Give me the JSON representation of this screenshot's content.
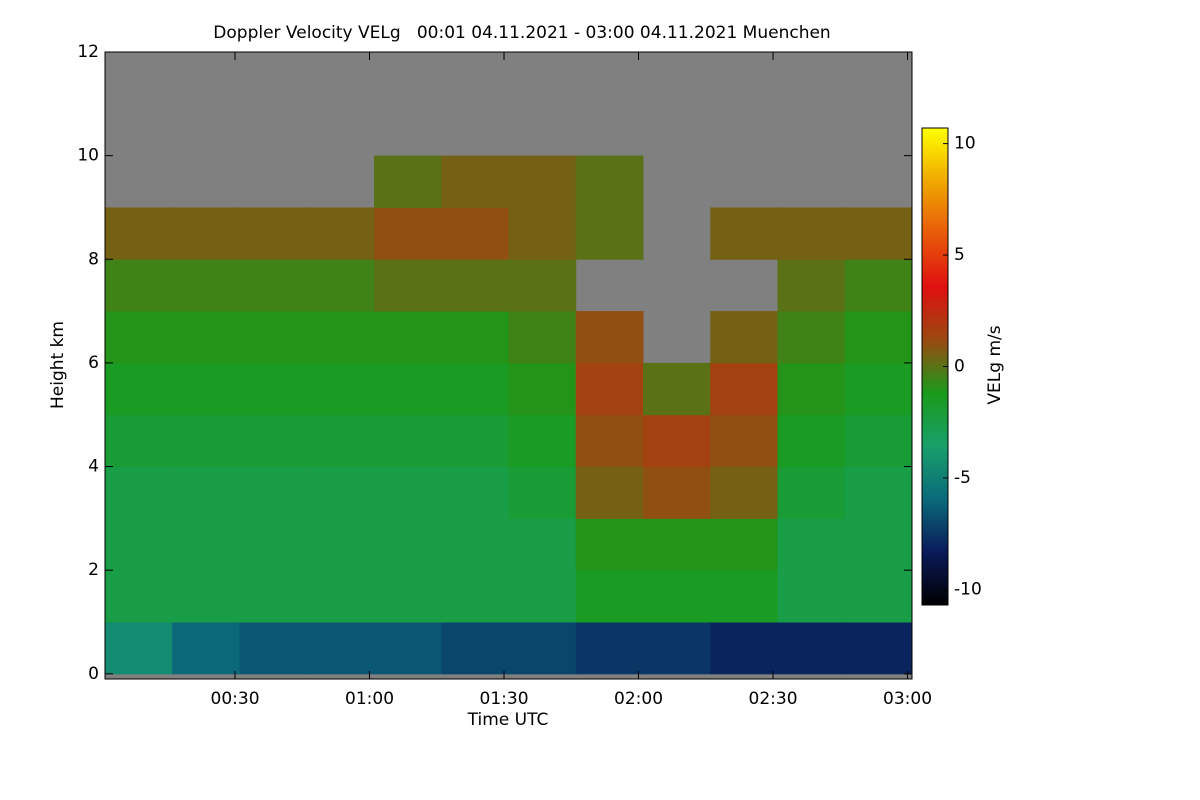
{
  "chart_data": {
    "type": "heatmap",
    "title": "Doppler Velocity VELg   00:01 04.11.2021 - 03:00 04.11.2021 Muenchen",
    "x_label": "Time UTC",
    "y_label": "Height km",
    "colorbar_label": "VELg m/s",
    "xbins": [
      1,
      16,
      31,
      46,
      61,
      76,
      91,
      106,
      121,
      136,
      151,
      166,
      181
    ],
    "ybins": [
      0,
      1,
      2,
      3,
      4,
      5,
      6,
      7,
      8,
      9,
      10,
      11,
      12
    ],
    "values": [
      [
        -4.5,
        -6,
        -6.5,
        -6.5,
        -6.5,
        -7,
        -7,
        -7.5,
        -7.5,
        -8,
        -8,
        -8
      ],
      [
        -2.5,
        -2.5,
        -2.5,
        -2.5,
        -2.5,
        -2.5,
        -2.5,
        -1.5,
        -1.5,
        -1.5,
        -2.5,
        -2.5
      ],
      [
        -2.5,
        -2.5,
        -2.5,
        -2.5,
        -2.5,
        -2.5,
        -2.5,
        -1,
        -1,
        -1,
        -2.5,
        -2.5
      ],
      [
        -2.5,
        -2.5,
        -2.5,
        -2.5,
        -2.5,
        -2.5,
        -2,
        0.5,
        1,
        0.5,
        -2,
        -2.5
      ],
      [
        -2,
        -2,
        -2,
        -2,
        -2,
        -2,
        -1.5,
        1,
        1.5,
        1,
        -1.5,
        -2
      ],
      [
        -1.5,
        -1.5,
        -1.5,
        -1.5,
        -1.5,
        -1.5,
        -1,
        1.5,
        0,
        1.5,
        -1,
        -1.5
      ],
      [
        -1,
        -1,
        -1,
        -1,
        -1,
        -1,
        -0.5,
        1,
        null,
        0.5,
        -0.5,
        -1
      ],
      [
        -0.5,
        -0.5,
        -0.5,
        -0.5,
        0,
        0,
        0,
        null,
        null,
        null,
        0,
        -0.5
      ],
      [
        0.5,
        0.5,
        0.5,
        0.5,
        1,
        1,
        0.5,
        0,
        null,
        0.5,
        0.5,
        0.5
      ],
      [
        null,
        null,
        null,
        null,
        0,
        0.5,
        0.5,
        0,
        null,
        null,
        null,
        null
      ],
      [
        null,
        null,
        null,
        null,
        null,
        null,
        null,
        null,
        null,
        null,
        null,
        null
      ],
      [
        null,
        null,
        null,
        null,
        null,
        null,
        null,
        null,
        null,
        null,
        null,
        null
      ]
    ],
    "missing_color": "#808080",
    "colormap": [
      "#000000",
      "#0a1a5a",
      "#0a6a7a",
      "#18a06a",
      "#1a9a1a",
      "#9a4a10",
      "#e01010",
      "#e85a0a",
      "#f0a800",
      "#ffff00"
    ],
    "xlim": [
      1,
      181
    ],
    "ylim": [
      -0.1,
      12
    ],
    "zlim": [
      -10.7,
      10.7
    ],
    "xticks": [
      {
        "value": 30,
        "label": "00:30"
      },
      {
        "value": 60,
        "label": "01:00"
      },
      {
        "value": 90,
        "label": "01:30"
      },
      {
        "value": 120,
        "label": "02:00"
      },
      {
        "value": 150,
        "label": "02:30"
      },
      {
        "value": 180,
        "label": "03:00"
      }
    ],
    "yticks": [
      0,
      2,
      4,
      6,
      8,
      10,
      12
    ],
    "zticks": [
      -10,
      -5,
      0,
      5,
      10
    ]
  }
}
